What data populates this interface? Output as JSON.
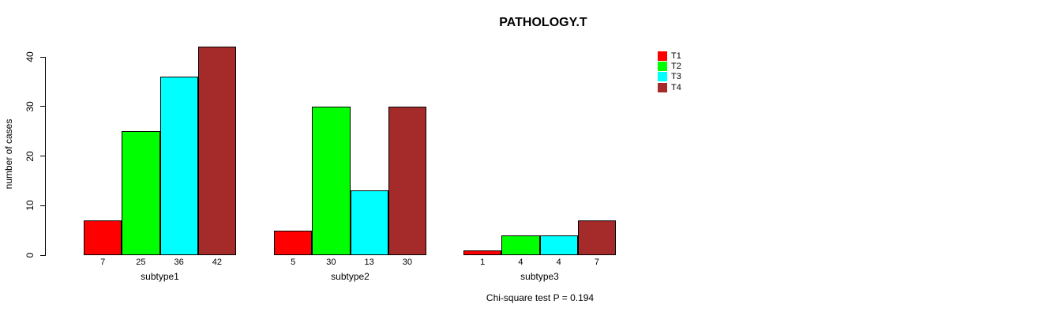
{
  "chart_data": {
    "type": "bar",
    "title": "PATHOLOGY.T",
    "xlabel": "",
    "ylabel": "number of cases",
    "categories": [
      "subtype1",
      "subtype2",
      "subtype3"
    ],
    "series": [
      {
        "name": "T1",
        "color": "#ff0000",
        "values": [
          7,
          5,
          1
        ]
      },
      {
        "name": "T2",
        "color": "#00ff00",
        "values": [
          25,
          30,
          4
        ]
      },
      {
        "name": "T3",
        "color": "#00ffff",
        "values": [
          36,
          13,
          4
        ]
      },
      {
        "name": "T4",
        "color": "#a52a2a",
        "values": [
          42,
          30,
          7
        ]
      }
    ],
    "yticks": [
      0,
      10,
      20,
      30,
      40
    ],
    "ylim": [
      0,
      40
    ],
    "grid": false,
    "bar_value_labels": true,
    "legend_position": "top-right",
    "annotation": "Chi-square test P = 0.194"
  }
}
